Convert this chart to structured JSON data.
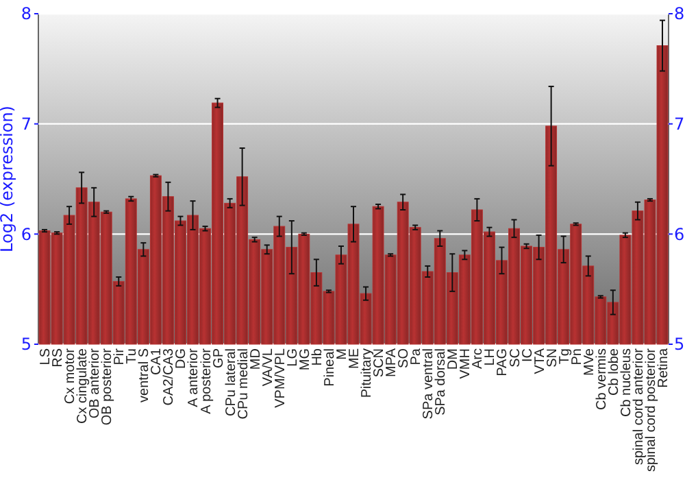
{
  "chart_data": {
    "type": "bar",
    "ylabel": "Log2 (expression)",
    "categories": [
      "LS",
      "RS",
      "Cx motor",
      "Cx cingulate",
      "OB anterior",
      "OB posterior",
      "Pir",
      "Tu",
      "ventral S",
      "CA1",
      "CA2/CA3",
      "DG",
      "A anterior",
      "A posterior",
      "GP",
      "CPu lateral",
      "CPu medial",
      "MD",
      "VA/VL",
      "VPM/VPL",
      "LG",
      "MG",
      "Hb",
      "Pineal",
      "M",
      "ME",
      "Pituitary",
      "SCN",
      "MPA",
      "SO",
      "Pa",
      "SPa ventral",
      "SPa dorsal",
      "DM",
      "VMH",
      "Arc",
      "LH",
      "PAG",
      "SC",
      "IC",
      "VTA",
      "SN",
      "Tg",
      "Pn",
      "MVe",
      "Cb vermis",
      "Cb lobe",
      "Cb nucleus",
      "spinal cord anterior",
      "spinal cord posterior",
      "Retina"
    ],
    "values": [
      6.03,
      6.01,
      6.17,
      6.42,
      6.29,
      6.2,
      5.57,
      6.32,
      5.86,
      6.53,
      6.34,
      6.12,
      6.17,
      6.05,
      7.19,
      6.28,
      6.52,
      5.95,
      5.86,
      6.07,
      5.88,
      6.0,
      5.65,
      5.48,
      5.81,
      6.09,
      5.46,
      6.25,
      5.81,
      6.29,
      6.06,
      5.66,
      5.96,
      5.65,
      5.81,
      6.22,
      6.02,
      5.76,
      6.05,
      5.89,
      5.88,
      6.98,
      5.86,
      6.09,
      5.71,
      5.43,
      5.38,
      5.99,
      6.21,
      6.31,
      7.71
    ],
    "errors": [
      0.01,
      0.01,
      0.08,
      0.14,
      0.13,
      0.01,
      0.04,
      0.02,
      0.06,
      0.01,
      0.13,
      0.04,
      0.13,
      0.02,
      0.04,
      0.04,
      0.26,
      0.02,
      0.04,
      0.09,
      0.24,
      0.01,
      0.12,
      0.01,
      0.08,
      0.16,
      0.06,
      0.02,
      0.01,
      0.07,
      0.02,
      0.05,
      0.07,
      0.17,
      0.04,
      0.1,
      0.04,
      0.12,
      0.08,
      0.02,
      0.11,
      0.36,
      0.12,
      0.01,
      0.09,
      0.01,
      0.11,
      0.02,
      0.08,
      0.01,
      0.23
    ],
    "color": "#b83232",
    "ylim": [
      5,
      8
    ],
    "yticks": [
      5,
      6,
      7,
      8
    ],
    "y2lim": [
      5,
      8
    ],
    "y2ticks": [
      5,
      6,
      7,
      8
    ],
    "grid": "y"
  }
}
